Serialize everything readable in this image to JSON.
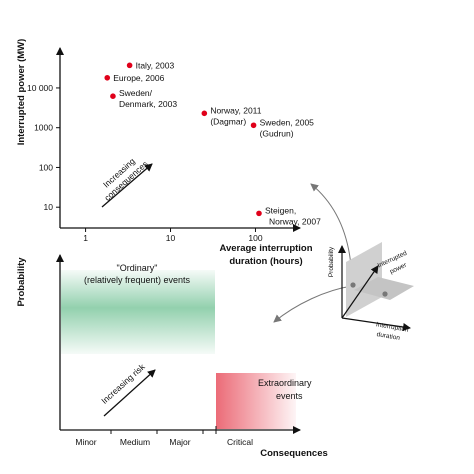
{
  "chart_data": [
    {
      "type": "scatter",
      "xscale": "log",
      "yscale": "log",
      "xlim": [
        0.5,
        300
      ],
      "ylim": [
        3,
        90000
      ],
      "ylabel": "Interrupted power (MW)",
      "xlabel_line1": "Average interruption",
      "xlabel_line2": "duration (hours)",
      "xticks": [
        {
          "value": 1,
          "label": "1"
        },
        {
          "value": 10,
          "label": "10"
        },
        {
          "value": 100,
          "label": "100"
        }
      ],
      "yticks": [
        {
          "value": 10,
          "label": "10"
        },
        {
          "value": 100,
          "label": "100"
        },
        {
          "value": 1000,
          "label": "1000"
        },
        {
          "value": 10000,
          "label": "10 000"
        }
      ],
      "point_color": "#e0001a",
      "points": [
        {
          "x": 3.3,
          "y": 37000,
          "label": [
            "Italy, 2003"
          ],
          "anchor": "right"
        },
        {
          "x": 1.8,
          "y": 18000,
          "label": [
            "Europe, 2006"
          ],
          "anchor": "right"
        },
        {
          "x": 2.1,
          "y": 6200,
          "label": [
            "Sweden/",
            "Denmark, 2003"
          ],
          "anchor": "right"
        },
        {
          "x": 25,
          "y": 2300,
          "label": [
            "Norway, 2011",
            "(Dagmar)"
          ],
          "anchor": "right"
        },
        {
          "x": 95,
          "y": 1150,
          "label": [
            "Sweden, 2005",
            "(Gudrun)"
          ],
          "anchor": "right"
        },
        {
          "x": 110,
          "y": 7,
          "label": [
            "Steigen,",
            "Norway, 2007"
          ],
          "anchor": "right"
        }
      ],
      "arrow_label": [
        "Increasing",
        "consequences"
      ]
    },
    {
      "type": "area",
      "ylabel": "Probability",
      "xlabel": "Consequences",
      "categories": [
        "Minor",
        "Medium",
        "Major",
        "Critical"
      ],
      "regions": [
        {
          "label": [
            "\"Ordinary\"",
            "(relatively frequent) events"
          ],
          "color": "#3aaa6b",
          "text_color": "#1a9850"
        },
        {
          "label": [
            "Extraordinary",
            "events"
          ],
          "color": "#e53a4a",
          "text_color": "#d7191c"
        }
      ],
      "arrow_label": "Increasing risk"
    }
  ],
  "inset": {
    "axis_probability": "Probability",
    "axis_power": [
      "Interrupted",
      "power"
    ],
    "axis_duration": [
      "Interruption",
      "duration"
    ]
  }
}
